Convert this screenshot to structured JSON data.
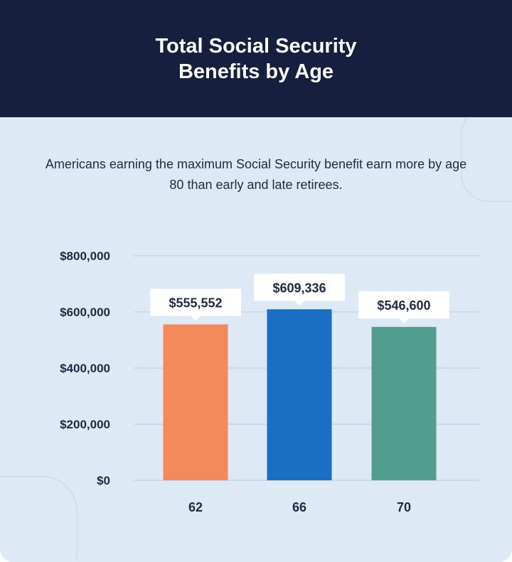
{
  "chart_data": {
    "type": "bar",
    "title": "Total Social Security Benefits by Age",
    "subtitle": "Americans earning the maximum Social Security benefit earn more by age 80 than early and late retirees.",
    "xlabel": "",
    "ylabel": "",
    "categories": [
      "62",
      "66",
      "70"
    ],
    "values": [
      555552,
      609336,
      546600
    ],
    "data_labels": [
      "$555,552",
      "$609,336",
      "$546,600"
    ],
    "colors": [
      "#f4895c",
      "#1a6fc4",
      "#529e8e"
    ],
    "ylim": [
      0,
      800000
    ],
    "yticks": [
      0,
      200000,
      400000,
      600000,
      800000
    ],
    "ytick_labels": [
      "$0",
      "$200,000",
      "$400,000",
      "$600,000",
      "$800,000"
    ],
    "grid": true,
    "legend": "none"
  },
  "theme": {
    "header_bg": "#161f3e",
    "background": "#dde9f5",
    "grid_color": "#c3d6ea",
    "text_color": "#1f2a44"
  }
}
